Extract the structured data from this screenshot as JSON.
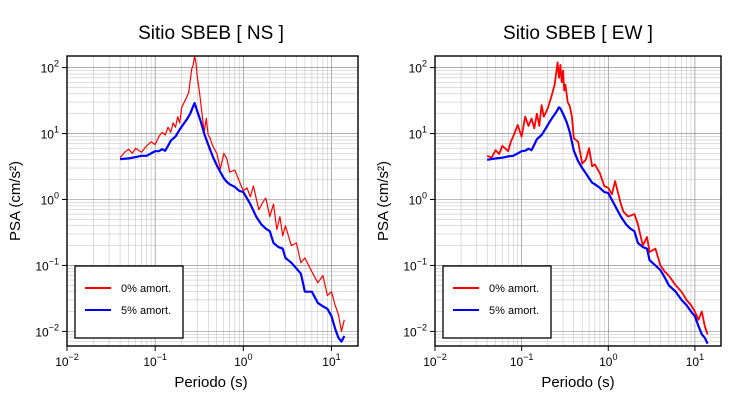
{
  "chart_data": [
    {
      "type": "line",
      "title": "Sitio SBEB [ NS ]",
      "xlabel": "Periodo (s)",
      "ylabel": "PSA (cm/s²)",
      "x_scale": "log",
      "y_scale": "log",
      "xlim": [
        0.01,
        20
      ],
      "ylim": [
        0.006,
        150
      ],
      "x_ticks": [
        {
          "value": 0.01,
          "base": "10",
          "exp": "−2"
        },
        {
          "value": 0.1,
          "base": "10",
          "exp": "−1"
        },
        {
          "value": 1,
          "base": "10",
          "exp": "0"
        },
        {
          "value": 10,
          "base": "10",
          "exp": "1"
        }
      ],
      "y_ticks": [
        {
          "value": 0.01,
          "base": "10",
          "exp": "−2"
        },
        {
          "value": 0.1,
          "base": "10",
          "exp": "−1"
        },
        {
          "value": 1,
          "base": "10",
          "exp": "0"
        },
        {
          "value": 10,
          "base": "10",
          "exp": "1"
        },
        {
          "value": 100,
          "base": "10",
          "exp": "2"
        }
      ],
      "grid": true,
      "legend_position": "bottom-left",
      "series": [
        {
          "name": "0% amort.",
          "color": "#ff0000",
          "x": [
            0.04,
            0.045,
            0.05,
            0.055,
            0.06,
            0.07,
            0.08,
            0.09,
            0.1,
            0.11,
            0.12,
            0.13,
            0.14,
            0.15,
            0.16,
            0.17,
            0.18,
            0.19,
            0.2,
            0.22,
            0.24,
            0.26,
            0.27,
            0.28,
            0.29,
            0.3,
            0.32,
            0.34,
            0.36,
            0.38,
            0.4,
            0.42,
            0.45,
            0.5,
            0.55,
            0.6,
            0.65,
            0.7,
            0.8,
            0.9,
            1.0,
            1.1,
            1.2,
            1.3,
            1.5,
            1.7,
            1.8,
            2.0,
            2.2,
            2.4,
            2.6,
            2.8,
            3.0,
            3.5,
            4.0,
            4.5,
            5.0,
            6.0,
            7.0,
            8.0,
            9.0,
            10.0,
            11.0,
            12.0,
            13.0,
            14.0
          ],
          "y": [
            4.3,
            5.2,
            5.8,
            5.0,
            6.0,
            5.2,
            6.5,
            7.5,
            6.8,
            9.0,
            10.5,
            9.5,
            12.5,
            10.5,
            14.5,
            12.5,
            18.0,
            14.5,
            25.0,
            32.0,
            42.0,
            95.0,
            110.0,
            150.0,
            120.0,
            75.0,
            40.0,
            20.0,
            10.5,
            17.0,
            9.5,
            8.5,
            6.5,
            5.0,
            2.9,
            5.0,
            4.2,
            2.6,
            2.8,
            1.9,
            1.35,
            1.5,
            1.1,
            1.6,
            0.7,
            0.95,
            1.05,
            0.55,
            0.85,
            0.35,
            0.55,
            0.28,
            0.4,
            0.2,
            0.22,
            0.11,
            0.13,
            0.08,
            0.055,
            0.07,
            0.035,
            0.04,
            0.025,
            0.018,
            0.01,
            0.015
          ]
        },
        {
          "name": "5% amort.",
          "color": "#0000ff",
          "x": [
            0.04,
            0.05,
            0.06,
            0.07,
            0.08,
            0.09,
            0.1,
            0.11,
            0.12,
            0.13,
            0.14,
            0.15,
            0.17,
            0.19,
            0.21,
            0.23,
            0.25,
            0.27,
            0.28,
            0.3,
            0.33,
            0.36,
            0.4,
            0.45,
            0.5,
            0.55,
            0.6,
            0.65,
            0.7,
            0.8,
            0.9,
            1.0,
            1.2,
            1.4,
            1.6,
            1.8,
            2.0,
            2.2,
            2.5,
            2.8,
            3.0,
            3.5,
            4.0,
            4.5,
            5.0,
            6.0,
            7.0,
            8.0,
            9.0,
            10.0,
            11.0,
            12.0,
            13.0,
            14.0
          ],
          "y": [
            4.1,
            4.2,
            4.4,
            4.6,
            4.6,
            5.0,
            5.4,
            5.4,
            5.8,
            5.5,
            6.5,
            7.8,
            9.0,
            11.5,
            14.0,
            16.5,
            20.0,
            26.0,
            29.0,
            22.0,
            15.0,
            10.0,
            6.8,
            4.5,
            3.3,
            2.6,
            2.1,
            1.85,
            1.7,
            1.55,
            1.35,
            1.3,
            0.85,
            0.55,
            0.42,
            0.36,
            0.33,
            0.22,
            0.19,
            0.18,
            0.13,
            0.11,
            0.09,
            0.075,
            0.04,
            0.04,
            0.027,
            0.024,
            0.022,
            0.017,
            0.011,
            0.008,
            0.007,
            0.0085
          ]
        }
      ]
    },
    {
      "type": "line",
      "title": "Sitio SBEB [ EW ]",
      "xlabel": "Periodo (s)",
      "ylabel": "PSA (cm/s²)",
      "x_scale": "log",
      "y_scale": "log",
      "xlim": [
        0.01,
        20
      ],
      "ylim": [
        0.006,
        150
      ],
      "x_ticks": [
        {
          "value": 0.01,
          "base": "10",
          "exp": "−2"
        },
        {
          "value": 0.1,
          "base": "10",
          "exp": "−1"
        },
        {
          "value": 1,
          "base": "10",
          "exp": "0"
        },
        {
          "value": 10,
          "base": "10",
          "exp": "1"
        }
      ],
      "y_ticks": [
        {
          "value": 0.01,
          "base": "10",
          "exp": "−2"
        },
        {
          "value": 0.1,
          "base": "10",
          "exp": "−1"
        },
        {
          "value": 1,
          "base": "10",
          "exp": "0"
        },
        {
          "value": 10,
          "base": "10",
          "exp": "1"
        },
        {
          "value": 100,
          "base": "10",
          "exp": "2"
        }
      ],
      "grid": true,
      "legend_position": "bottom-left",
      "series": [
        {
          "name": "0% amort.",
          "color": "#ff0000",
          "x": [
            0.04,
            0.045,
            0.05,
            0.055,
            0.06,
            0.07,
            0.075,
            0.08,
            0.09,
            0.1,
            0.11,
            0.12,
            0.13,
            0.14,
            0.15,
            0.16,
            0.17,
            0.18,
            0.2,
            0.22,
            0.24,
            0.26,
            0.27,
            0.28,
            0.29,
            0.3,
            0.31,
            0.32,
            0.34,
            0.36,
            0.38,
            0.4,
            0.45,
            0.5,
            0.55,
            0.6,
            0.65,
            0.7,
            0.8,
            0.9,
            1.0,
            1.1,
            1.2,
            1.4,
            1.5,
            1.7,
            2.0,
            2.2,
            2.5,
            2.8,
            3.0,
            3.5,
            4.0,
            4.5,
            5.0,
            6.0,
            7.0,
            8.0,
            9.0,
            10.0,
            11.0,
            12.0,
            13.0,
            14.0
          ],
          "y": [
            4.6,
            4.3,
            5.6,
            4.9,
            6.5,
            5.4,
            7.5,
            9.0,
            13.5,
            9.0,
            18.0,
            13.0,
            17.0,
            12.0,
            20.0,
            13.0,
            27.0,
            18.0,
            24.0,
            36.0,
            55.0,
            120.0,
            70.0,
            110.0,
            60.0,
            90.0,
            45.0,
            55.0,
            30.0,
            26.0,
            18.0,
            8.5,
            7.5,
            3.5,
            4.0,
            6.0,
            3.2,
            3.4,
            2.5,
            1.6,
            1.5,
            1.2,
            1.9,
            0.85,
            0.65,
            0.55,
            0.6,
            0.42,
            0.2,
            0.27,
            0.16,
            0.18,
            0.1,
            0.08,
            0.07,
            0.05,
            0.04,
            0.03,
            0.025,
            0.02,
            0.015,
            0.02,
            0.012,
            0.009
          ]
        },
        {
          "name": "5% amort.",
          "color": "#0000ff",
          "x": [
            0.04,
            0.05,
            0.06,
            0.07,
            0.08,
            0.09,
            0.1,
            0.11,
            0.12,
            0.13,
            0.14,
            0.15,
            0.17,
            0.19,
            0.21,
            0.23,
            0.25,
            0.27,
            0.28,
            0.3,
            0.33,
            0.36,
            0.4,
            0.45,
            0.5,
            0.55,
            0.6,
            0.65,
            0.7,
            0.8,
            0.9,
            1.0,
            1.2,
            1.4,
            1.6,
            1.8,
            2.0,
            2.2,
            2.5,
            2.8,
            3.0,
            3.5,
            4.0,
            4.5,
            5.0,
            6.0,
            7.0,
            8.0,
            9.0,
            10.0,
            11.0,
            12.0,
            13.0,
            14.0
          ],
          "y": [
            4.0,
            4.2,
            4.3,
            4.5,
            4.6,
            5.0,
            5.4,
            5.5,
            5.9,
            5.6,
            6.8,
            8.2,
            9.5,
            12.0,
            15.0,
            18.0,
            21.0,
            25.0,
            24.0,
            20.0,
            15.0,
            10.5,
            5.5,
            3.8,
            3.0,
            2.5,
            2.1,
            1.8,
            1.7,
            1.5,
            1.3,
            1.25,
            0.8,
            0.55,
            0.42,
            0.36,
            0.33,
            0.22,
            0.19,
            0.18,
            0.12,
            0.1,
            0.085,
            0.065,
            0.05,
            0.04,
            0.03,
            0.025,
            0.02,
            0.017,
            0.012,
            0.009,
            0.008,
            0.0065
          ]
        }
      ]
    }
  ]
}
